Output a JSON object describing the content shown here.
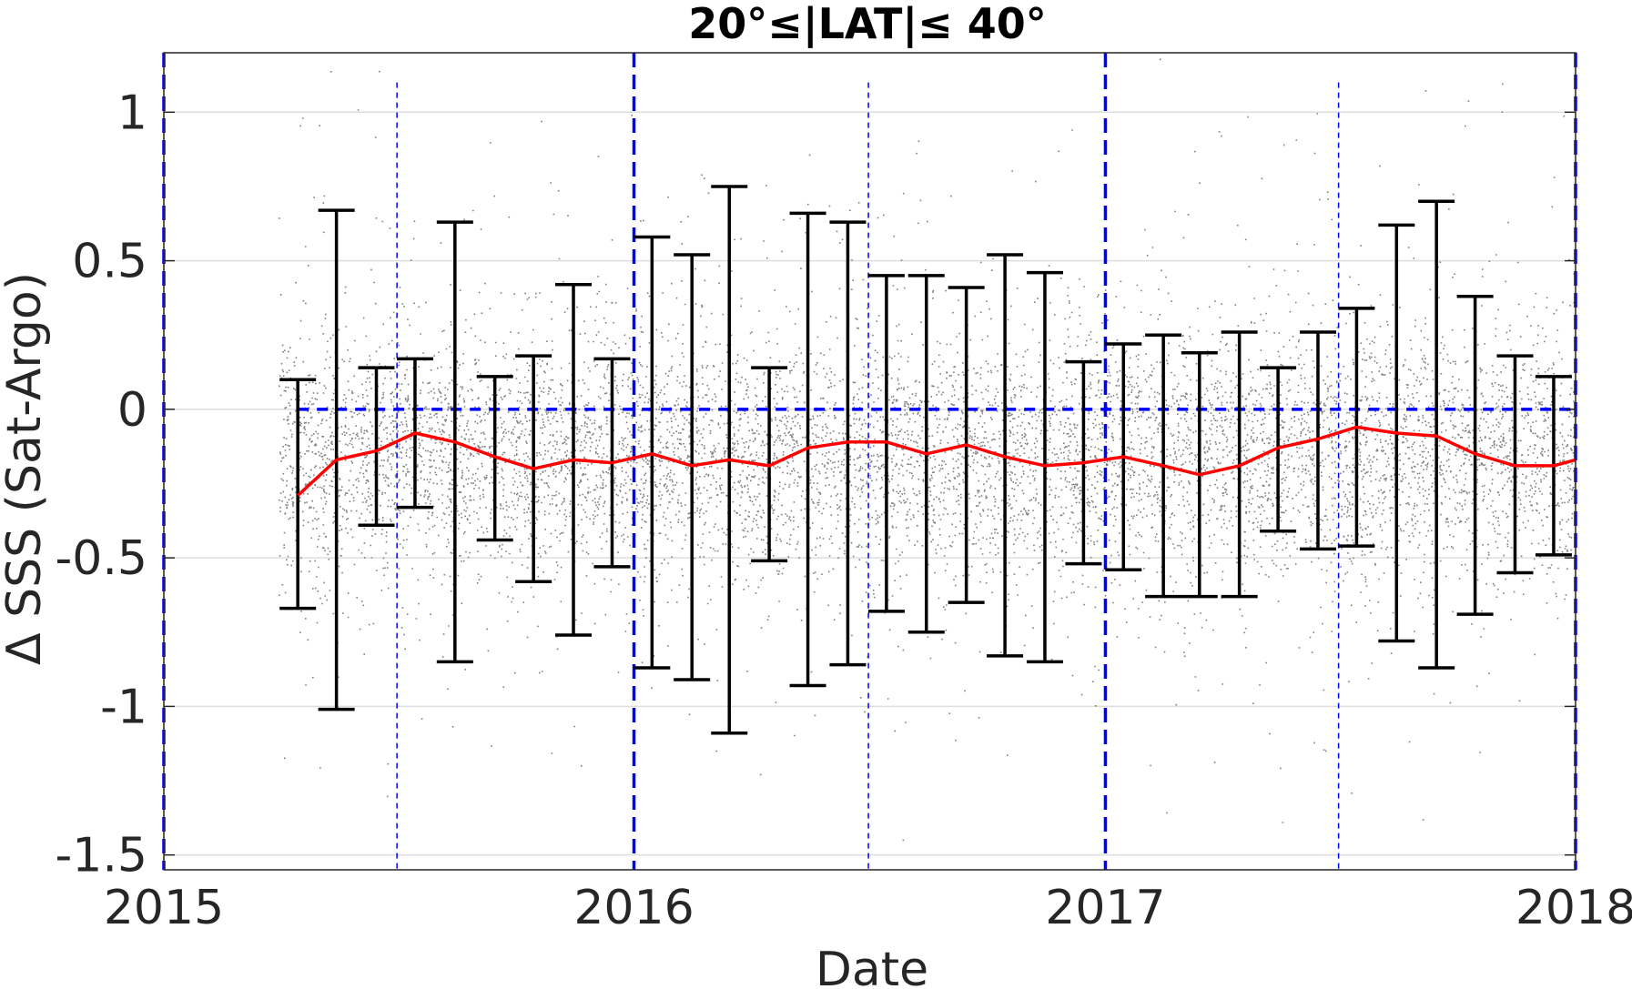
{
  "chart_data": {
    "type": "scatter",
    "title": "20°≤|LAT|≤ 40°",
    "xlabel": "Date",
    "ylabel": "Δ SSS (Sat-Argo)",
    "xlim": [
      "2015-01-01",
      "2018-01-01"
    ],
    "ylim": [
      -1.55,
      1.2
    ],
    "x_ticks": [
      "2015",
      "2016",
      "2017",
      "2018"
    ],
    "y_ticks": [
      "1",
      "0.5",
      "0",
      "-0.5",
      "-1",
      "-1.5"
    ],
    "y_tick_values": [
      1,
      0.5,
      0,
      -0.5,
      -1,
      -1.5
    ],
    "grid": "horizontal",
    "colors": {
      "scatter": "#808080",
      "mean_line": "#ff0000",
      "error_bars": "#000000",
      "reference_lines": "#0000ff",
      "gridline": "#dedede",
      "axes": "#262626"
    },
    "reference_lines": {
      "zero_line": 0,
      "year_boundaries": [
        "2015-01-01",
        "2016-01-01",
        "2017-01-01",
        "2018-01-01"
      ],
      "mid_year_lines": [
        "2015-07-01",
        "2016-07-01",
        "2017-07-01"
      ]
    },
    "scatter_points": {
      "x_range": [
        "2015-03-31",
        "2018-01-01"
      ],
      "center": -0.15,
      "spread_std": 0.2
    },
    "series": [
      {
        "name": "",
        "kind": "monthly_mean_with_error_bars",
        "points": [
          {
            "x": "2015-04-15",
            "mean": -0.29,
            "lower": -0.67,
            "upper": 0.1
          },
          {
            "x": "2015-05-15",
            "mean": -0.17,
            "lower": -1.01,
            "upper": 0.67
          },
          {
            "x": "2015-06-15",
            "mean": -0.14,
            "lower": -0.39,
            "upper": 0.14
          },
          {
            "x": "2015-07-15",
            "mean": -0.08,
            "lower": -0.33,
            "upper": 0.17
          },
          {
            "x": "2015-08-15",
            "mean": -0.11,
            "lower": -0.85,
            "upper": 0.63
          },
          {
            "x": "2015-09-15",
            "mean": -0.16,
            "lower": -0.44,
            "upper": 0.11
          },
          {
            "x": "2015-10-15",
            "mean": -0.2,
            "lower": -0.58,
            "upper": 0.18
          },
          {
            "x": "2015-11-15",
            "mean": -0.17,
            "lower": -0.76,
            "upper": 0.42
          },
          {
            "x": "2015-12-15",
            "mean": -0.18,
            "lower": -0.53,
            "upper": 0.17
          },
          {
            "x": "2016-01-15",
            "mean": -0.15,
            "lower": -0.87,
            "upper": 0.58
          },
          {
            "x": "2016-02-15",
            "mean": -0.19,
            "lower": -0.91,
            "upper": 0.52
          },
          {
            "x": "2016-03-15",
            "mean": -0.17,
            "lower": -1.09,
            "upper": 0.75
          },
          {
            "x": "2016-04-15",
            "mean": -0.19,
            "lower": -0.51,
            "upper": 0.14
          },
          {
            "x": "2016-05-15",
            "mean": -0.13,
            "lower": -0.93,
            "upper": 0.66
          },
          {
            "x": "2016-06-15",
            "mean": -0.11,
            "lower": -0.86,
            "upper": 0.63
          },
          {
            "x": "2016-07-15",
            "mean": -0.11,
            "lower": -0.68,
            "upper": 0.45
          },
          {
            "x": "2016-08-15",
            "mean": -0.15,
            "lower": -0.75,
            "upper": 0.45
          },
          {
            "x": "2016-09-15",
            "mean": -0.12,
            "lower": -0.65,
            "upper": 0.41
          },
          {
            "x": "2016-10-15",
            "mean": -0.16,
            "lower": -0.83,
            "upper": 0.52
          },
          {
            "x": "2016-11-15",
            "mean": -0.19,
            "lower": -0.85,
            "upper": 0.46
          },
          {
            "x": "2016-12-15",
            "mean": -0.18,
            "lower": -0.52,
            "upper": 0.16
          },
          {
            "x": "2017-01-15",
            "mean": -0.16,
            "lower": -0.54,
            "upper": 0.22
          },
          {
            "x": "2017-02-15",
            "mean": -0.19,
            "lower": -0.63,
            "upper": 0.25
          },
          {
            "x": "2017-03-15",
            "mean": -0.22,
            "lower": -0.63,
            "upper": 0.19
          },
          {
            "x": "2017-04-15",
            "mean": -0.19,
            "lower": -0.63,
            "upper": 0.26
          },
          {
            "x": "2017-05-15",
            "mean": -0.13,
            "lower": -0.41,
            "upper": 0.14
          },
          {
            "x": "2017-06-15",
            "mean": -0.1,
            "lower": -0.47,
            "upper": 0.26
          },
          {
            "x": "2017-07-15",
            "mean": -0.06,
            "lower": -0.46,
            "upper": 0.34
          },
          {
            "x": "2017-08-15",
            "mean": -0.08,
            "lower": -0.78,
            "upper": 0.62
          },
          {
            "x": "2017-09-15",
            "mean": -0.09,
            "lower": -0.87,
            "upper": 0.7
          },
          {
            "x": "2017-10-15",
            "mean": -0.15,
            "lower": -0.69,
            "upper": 0.38
          },
          {
            "x": "2017-11-15",
            "mean": -0.19,
            "lower": -0.55,
            "upper": 0.18
          },
          {
            "x": "2017-12-15",
            "mean": -0.19,
            "lower": -0.49,
            "upper": 0.11
          }
        ]
      }
    ]
  }
}
